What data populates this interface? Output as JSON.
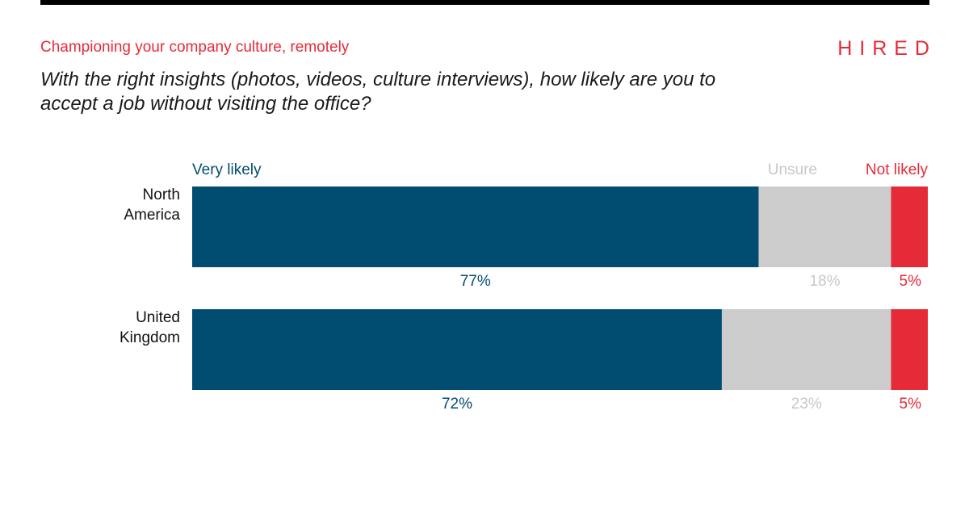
{
  "header": {
    "subtitle": "Championing your company culture, remotely",
    "logo_text": "HIRED",
    "question": "With the right insights (photos, videos, culture interviews), how likely are you to accept a job without visiting the office?"
  },
  "colors": {
    "very_likely": "#004d71",
    "unsure": "#cccccc",
    "unsure_label": "#c8c8c8",
    "not_likely": "#e62b38",
    "row_label": "#111111"
  },
  "chart_data": {
    "type": "bar",
    "orientation": "horizontal",
    "stacked": true,
    "normalized_to": 100,
    "categories": [
      [
        "North",
        "America"
      ],
      [
        "United",
        "Kingdom"
      ]
    ],
    "series": [
      {
        "name": "Very likely",
        "values": [
          77,
          72
        ],
        "labels": [
          "77%",
          "72%"
        ]
      },
      {
        "name": "Unsure",
        "values": [
          18,
          23
        ],
        "labels": [
          "18%",
          "23%"
        ]
      },
      {
        "name": "Not likely",
        "values": [
          5,
          5
        ],
        "labels": [
          "5%",
          "5%"
        ]
      }
    ],
    "legend_placement": "top",
    "title": "With the right insights (photos, videos, culture interviews), how likely are you to accept a job without visiting the office?",
    "xlabel": "",
    "ylabel": "",
    "xlim": [
      0,
      100
    ],
    "grid": false
  }
}
